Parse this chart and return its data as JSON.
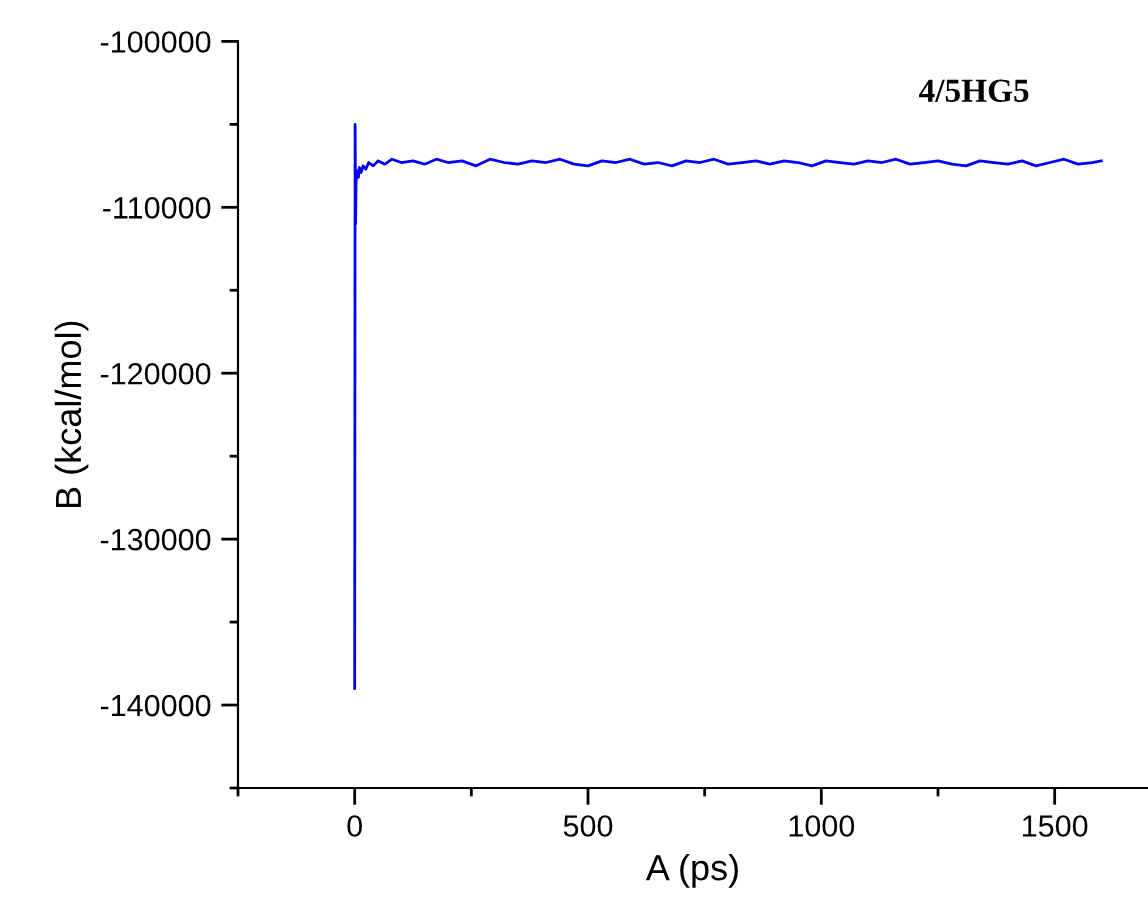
{
  "chart_data": {
    "type": "line",
    "xlabel": "A (ps)",
    "ylabel": "B (kcal/mol)",
    "annotations": [
      "4/5HG5"
    ],
    "xlim": [
      -250,
      1700
    ],
    "ylim": [
      -145000,
      -100000
    ],
    "xticks": [
      {
        "value": -250,
        "label": null
      },
      0,
      {
        "value": 250,
        "label": null
      },
      500,
      {
        "value": 750,
        "label": null
      },
      1000,
      {
        "value": 1250,
        "label": null
      },
      1500
    ],
    "yticks": [
      {
        "value": -145000,
        "label": null
      },
      -140000,
      {
        "value": -135000,
        "label": null
      },
      -130000,
      {
        "value": -125000,
        "label": null
      },
      -120000,
      {
        "value": -115000,
        "label": null
      },
      -110000,
      {
        "value": -105000,
        "label": null
      },
      -100000
    ],
    "grid": false,
    "legend": false,
    "line_style": "solid",
    "marker": "none",
    "series": [
      {
        "color": "#0000ff",
        "x": [
          0,
          1,
          2,
          3,
          4,
          6,
          8,
          10,
          14,
          18,
          24,
          30,
          40,
          50,
          65,
          80,
          100,
          125,
          150,
          175,
          200,
          230,
          260,
          290,
          320,
          350,
          380,
          410,
          440,
          470,
          500,
          530,
          560,
          590,
          620,
          650,
          680,
          710,
          740,
          770,
          800,
          830,
          860,
          890,
          920,
          950,
          980,
          1010,
          1040,
          1070,
          1100,
          1130,
          1160,
          1190,
          1220,
          1250,
          1280,
          1310,
          1340,
          1370,
          1400,
          1430,
          1460,
          1490,
          1520,
          1550,
          1580,
          1600
        ],
        "values": [
          -139000,
          -105000,
          -111000,
          -108500,
          -108000,
          -107800,
          -108200,
          -107600,
          -107900,
          -107500,
          -107700,
          -107300,
          -107500,
          -107200,
          -107400,
          -107100,
          -107300,
          -107200,
          -107400,
          -107100,
          -107300,
          -107200,
          -107500,
          -107100,
          -107300,
          -107400,
          -107200,
          -107300,
          -107100,
          -107400,
          -107500,
          -107200,
          -107300,
          -107100,
          -107400,
          -107300,
          -107500,
          -107200,
          -107300,
          -107100,
          -107400,
          -107300,
          -107200,
          -107400,
          -107200,
          -107300,
          -107500,
          -107200,
          -107300,
          -107400,
          -107200,
          -107300,
          -107100,
          -107400,
          -107300,
          -107200,
          -107400,
          -107500,
          -107200,
          -107300,
          -107400,
          -107200,
          -107500,
          -107300,
          -107100,
          -107400,
          -107300,
          -107200
        ]
      }
    ]
  }
}
